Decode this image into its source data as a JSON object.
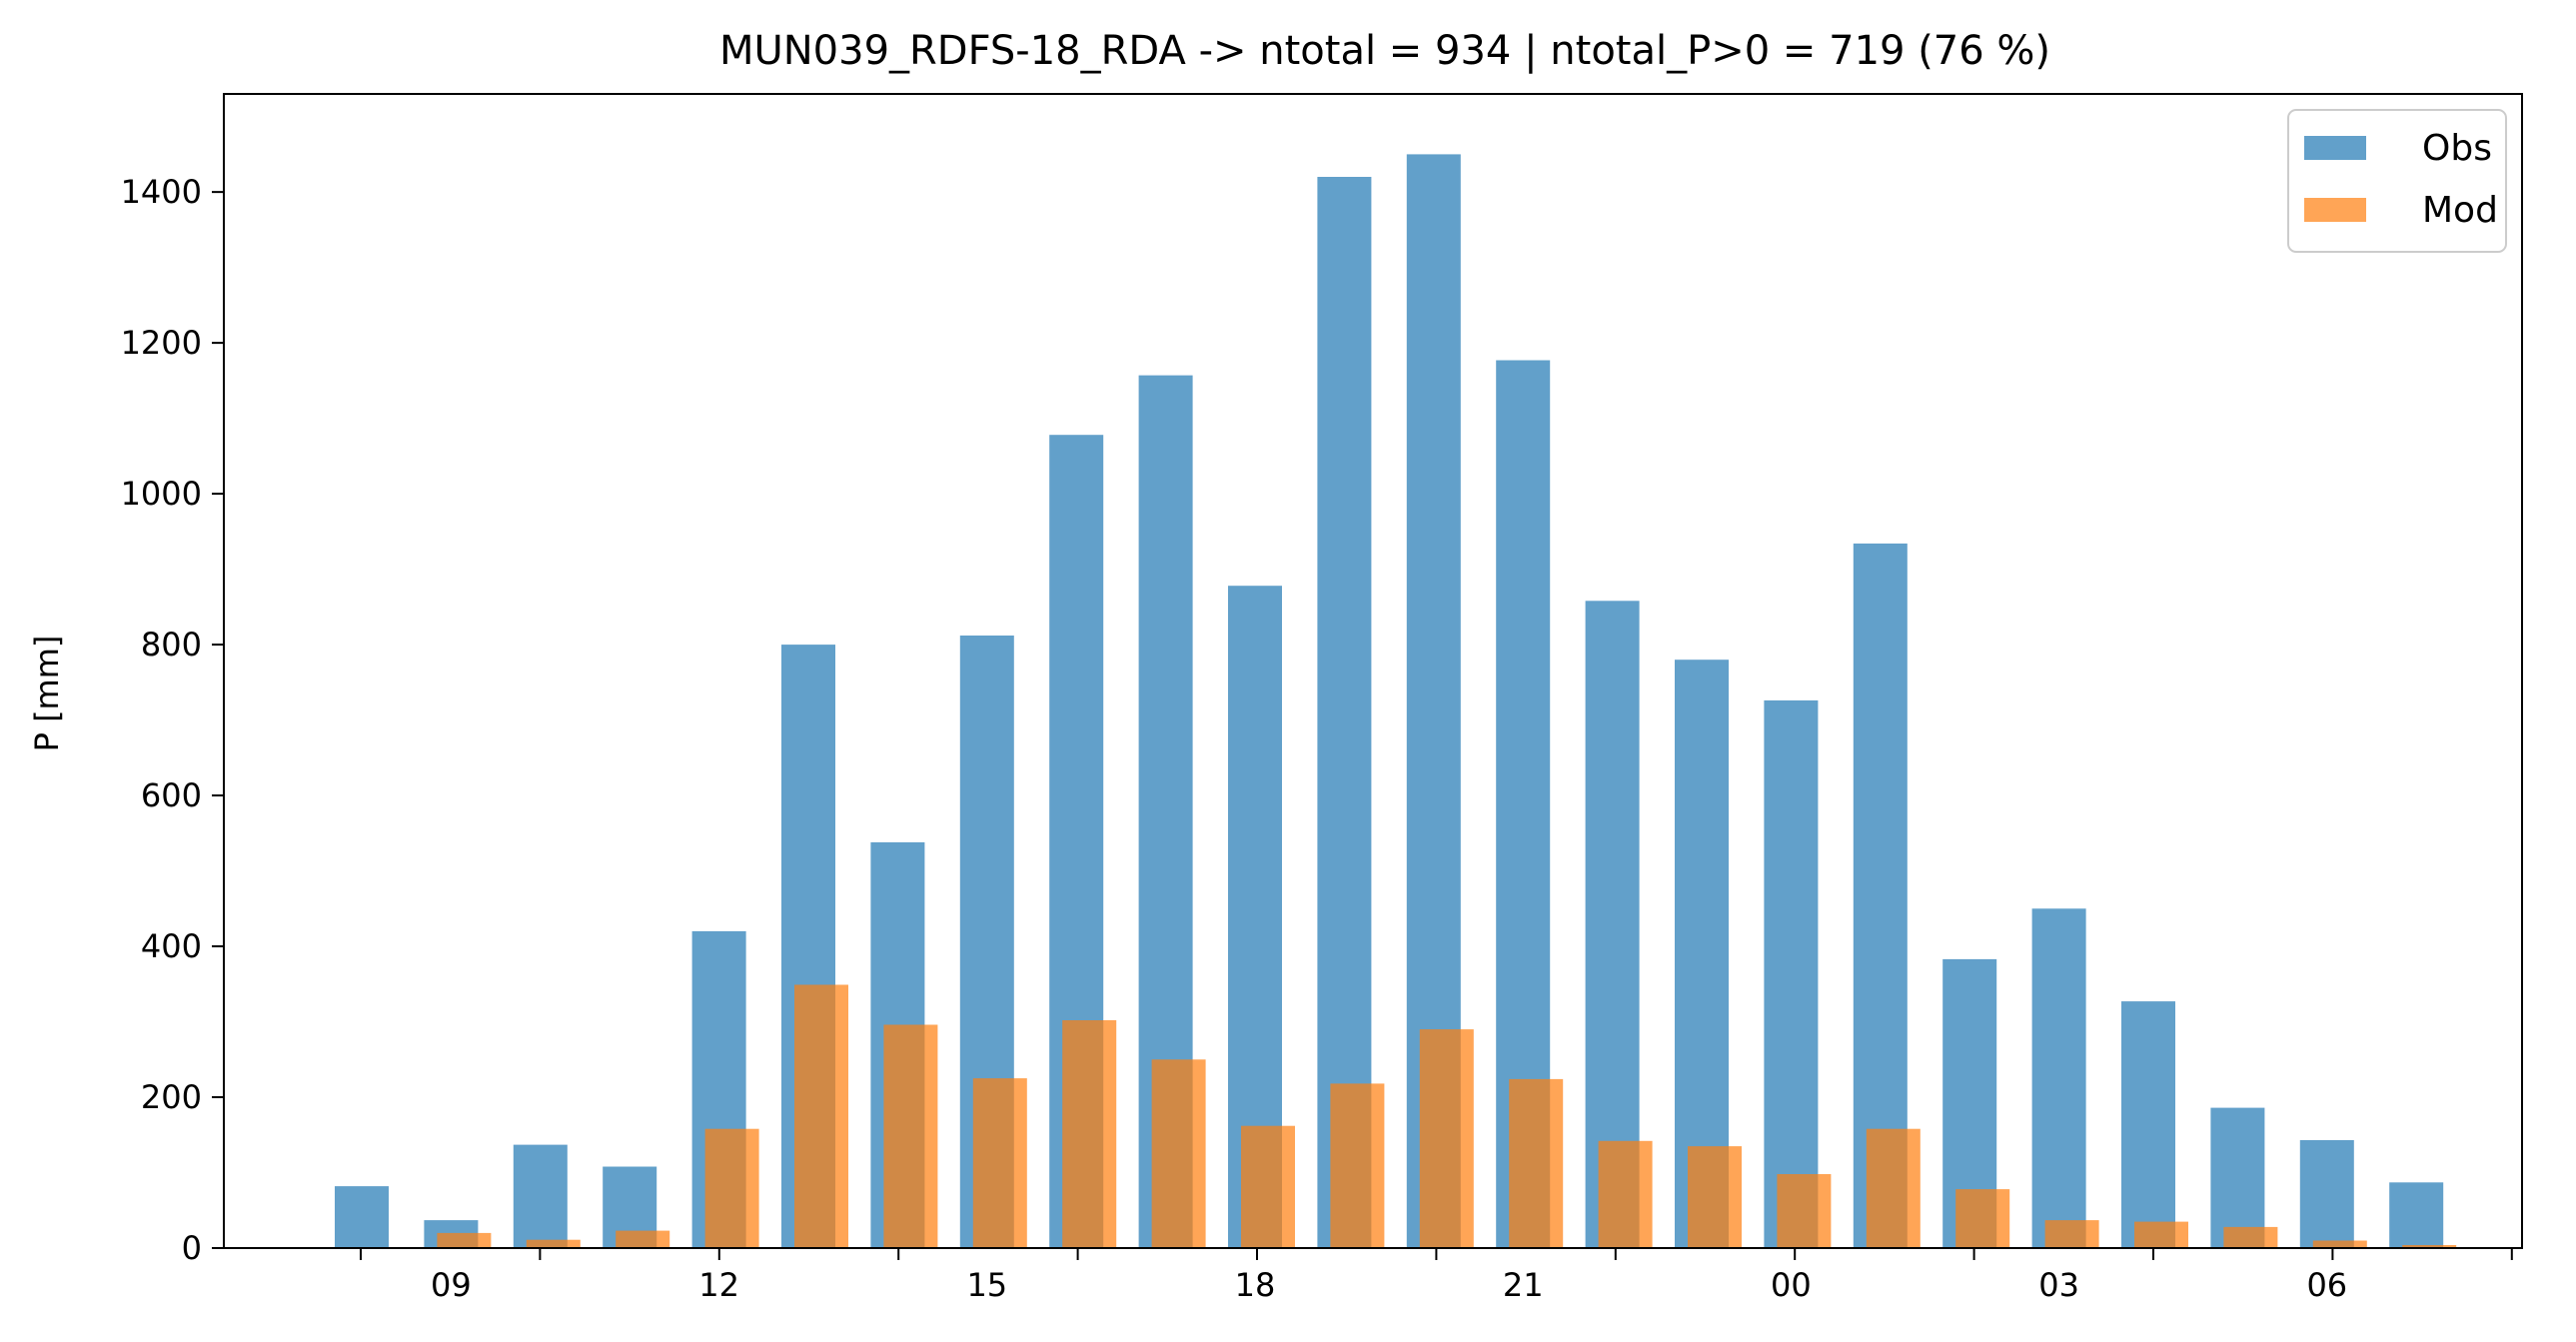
{
  "chart_data": {
    "type": "bar",
    "title": "MUN039_RDFS-18_RDA -> ntotal = 934 | ntotal_P>0 = 719 (76 %)",
    "xlabel": "",
    "ylabel": "P [mm]",
    "ylim": [
      0,
      1530
    ],
    "yticks": [
      0,
      200,
      400,
      600,
      800,
      1000,
      1200,
      1400
    ],
    "categories": [
      "08",
      "09",
      "10",
      "11",
      "12",
      "13",
      "14",
      "15",
      "16",
      "17",
      "18",
      "19",
      "20",
      "21",
      "22",
      "23",
      "00",
      "01",
      "02",
      "03",
      "04",
      "05",
      "06",
      "07"
    ],
    "xtick_labels": [
      "09",
      "12",
      "15",
      "18",
      "21",
      "00",
      "03",
      "06"
    ],
    "xtick_label_categories": [
      "09",
      "12",
      "15",
      "18",
      "21",
      "00",
      "03",
      "06"
    ],
    "series": [
      {
        "name": "Obs",
        "color": "#1f77b4",
        "opacity": 0.7,
        "values": [
          82,
          37,
          137,
          108,
          420,
          800,
          538,
          812,
          1078,
          1157,
          878,
          1420,
          1450,
          1177,
          858,
          780,
          726,
          934,
          383,
          450,
          327,
          186,
          143,
          87
        ]
      },
      {
        "name": "Mod",
        "color": "#ff7f0e",
        "opacity": 0.7,
        "values": [
          0,
          20,
          11,
          23,
          158,
          349,
          296,
          225,
          302,
          250,
          162,
          218,
          290,
          224,
          142,
          135,
          98,
          158,
          78,
          37,
          35,
          28,
          10,
          4
        ]
      }
    ],
    "legend_position": "top-right",
    "grid": false
  }
}
